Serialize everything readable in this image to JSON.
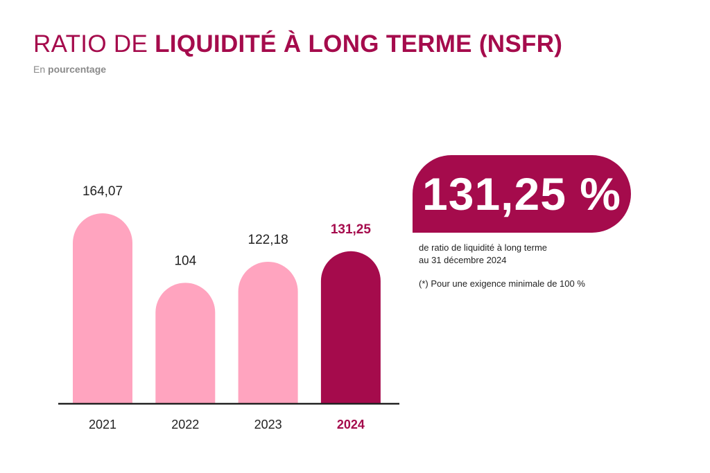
{
  "title": {
    "part_light": "RATIO DE ",
    "part_bold": "LIQUIDITÉ À LONG TERME (NSFR)"
  },
  "subtitle": {
    "part_light": "En ",
    "part_bold": "pourcentage"
  },
  "colors": {
    "accent": "#a50b4c",
    "bar_default": "#ffa4bf",
    "axis": "#222222",
    "label": "#222222"
  },
  "chart_data": {
    "type": "bar",
    "title": "RATIO DE LIQUIDITÉ À LONG TERME (NSFR)",
    "subtitle": "En pourcentage",
    "categories": [
      "2021",
      "2022",
      "2023",
      "2024"
    ],
    "values": [
      164.07,
      104,
      122.18,
      131.25
    ],
    "value_labels": [
      "164,07",
      "104",
      "122,18",
      "131,25"
    ],
    "highlight_index": 3,
    "ylim": [
      0,
      164.07
    ],
    "grid": false,
    "legend": "none"
  },
  "kpi": {
    "value": "131,25 %",
    "caption_line1": "de ratio de liquidité à long terme",
    "caption_line2": "au 31 décembre 2024",
    "note": "(*) Pour une exigence minimale de 100 %"
  }
}
